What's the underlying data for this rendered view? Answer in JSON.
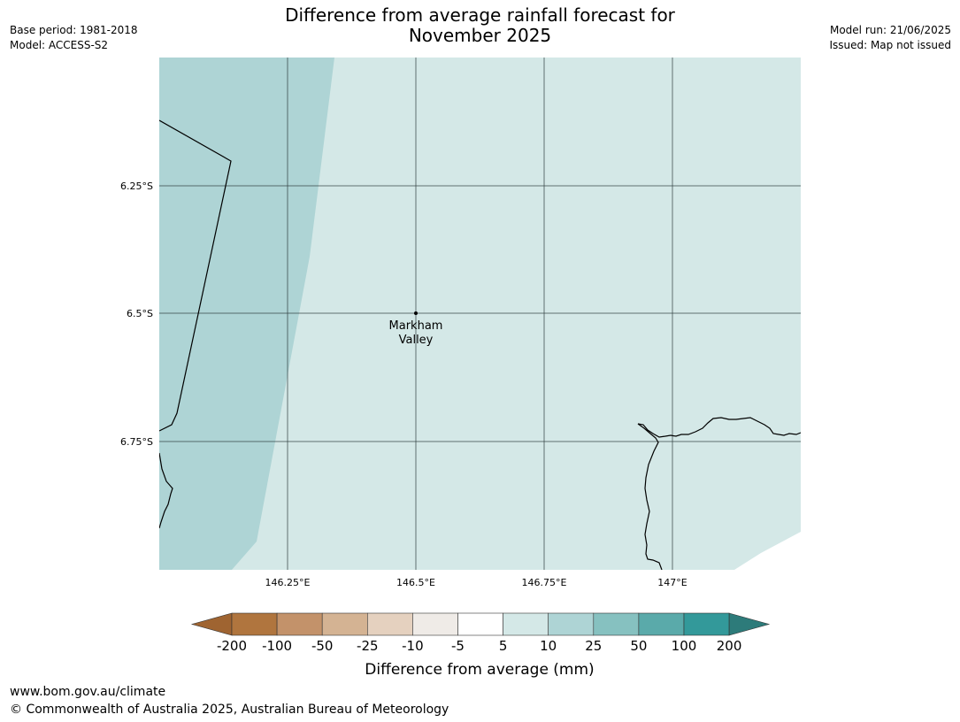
{
  "title": {
    "line1": "Difference from average rainfall forecast for",
    "line2": "November 2025"
  },
  "meta_left": {
    "base_period": "Base period: 1981-2018",
    "model": "Model: ACCESS-S2"
  },
  "meta_right": {
    "model_run": "Model run: 21/06/2025",
    "issued": "Issued: Map not issued"
  },
  "map": {
    "lat_labels": [
      "6.25°S",
      "6.5°S",
      "6.75°S"
    ],
    "lon_labels": [
      "146.25°E",
      "146.5°E",
      "146.75°E",
      "147°E"
    ],
    "place": {
      "name_line1": "Markham",
      "name_line2": "Valley",
      "lat": -6.5,
      "lon": 146.5
    },
    "zone_colors": {
      "5_to_10": "#d4e8e7",
      "10_to_25": "#aed4d5"
    }
  },
  "colorbar": {
    "ticks": [
      "-200",
      "-100",
      "-50",
      "-25",
      "-10",
      "-5",
      "5",
      "10",
      "25",
      "50",
      "100",
      "200"
    ],
    "colors": [
      "#9f6431",
      "#b0753e",
      "#c3926a",
      "#d4b393",
      "#e5d1bf",
      "#efebe7",
      "#ffffff",
      "#d4e8e7",
      "#aed4d5",
      "#86c1c0",
      "#5aaaaa",
      "#33999a",
      "#2d7b7a"
    ],
    "label": "Difference from average (mm)"
  },
  "footer": {
    "url": "www.bom.gov.au/climate",
    "copyright": "© Commonwealth of Australia 2025, Australian Bureau of Meteorology"
  }
}
